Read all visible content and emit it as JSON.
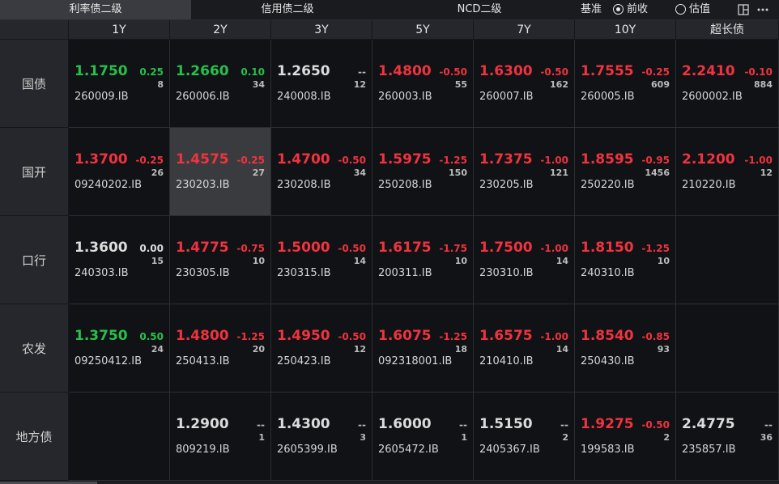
{
  "tabs": [
    "利率债二级",
    "信用债二级",
    "NCD二级"
  ],
  "basis": {
    "label": "基准",
    "options": [
      "前收",
      "估值"
    ],
    "selected": "前收"
  },
  "icons": {
    "layout": "layout-icon",
    "more": "more-icon"
  },
  "colors": {
    "up": "#f0333e",
    "down": "#27c04a",
    "flat": "#dcdcdc"
  },
  "columns": [
    "1Y",
    "2Y",
    "3Y",
    "5Y",
    "7Y",
    "10Y",
    "超长债"
  ],
  "rows": [
    {
      "label": "国债",
      "cells": [
        {
          "yield": "1.1750",
          "change": "0.25",
          "volume": "8",
          "code": "260009.IB",
          "trend": "down"
        },
        {
          "yield": "1.2660",
          "change": "0.10",
          "volume": "34",
          "code": "260006.IB",
          "trend": "down"
        },
        {
          "yield": "1.2650",
          "change": "--",
          "volume": "12",
          "code": "240008.IB",
          "trend": "flat"
        },
        {
          "yield": "1.4800",
          "change": "-0.50",
          "volume": "55",
          "code": "260003.IB",
          "trend": "up"
        },
        {
          "yield": "1.6300",
          "change": "-0.50",
          "volume": "162",
          "code": "260007.IB",
          "trend": "up"
        },
        {
          "yield": "1.7555",
          "change": "-0.25",
          "volume": "609",
          "code": "260005.IB",
          "trend": "up"
        },
        {
          "yield": "2.2410",
          "change": "-0.10",
          "volume": "884",
          "code": "2600002.IB",
          "trend": "up"
        }
      ]
    },
    {
      "label": "国开",
      "cells": [
        {
          "yield": "1.3700",
          "change": "-0.25",
          "volume": "26",
          "code": "09240202.IB",
          "trend": "up"
        },
        {
          "yield": "1.4575",
          "change": "-0.25",
          "volume": "27",
          "code": "230203.IB",
          "trend": "up",
          "highlight": true
        },
        {
          "yield": "1.4700",
          "change": "-0.50",
          "volume": "34",
          "code": "230208.IB",
          "trend": "up"
        },
        {
          "yield": "1.5975",
          "change": "-1.25",
          "volume": "150",
          "code": "250208.IB",
          "trend": "up"
        },
        {
          "yield": "1.7375",
          "change": "-1.00",
          "volume": "121",
          "code": "230205.IB",
          "trend": "up"
        },
        {
          "yield": "1.8595",
          "change": "-0.95",
          "volume": "1456",
          "code": "250220.IB",
          "trend": "up"
        },
        {
          "yield": "2.1200",
          "change": "-1.00",
          "volume": "12",
          "code": "210220.IB",
          "trend": "up"
        }
      ]
    },
    {
      "label": "口行",
      "cells": [
        {
          "yield": "1.3600",
          "change": "0.00",
          "volume": "15",
          "code": "240303.IB",
          "trend": "flat"
        },
        {
          "yield": "1.4775",
          "change": "-0.75",
          "volume": "10",
          "code": "230305.IB",
          "trend": "up"
        },
        {
          "yield": "1.5000",
          "change": "-0.50",
          "volume": "14",
          "code": "230315.IB",
          "trend": "up"
        },
        {
          "yield": "1.6175",
          "change": "-1.75",
          "volume": "10",
          "code": "200311.IB",
          "trend": "up"
        },
        {
          "yield": "1.7500",
          "change": "-1.00",
          "volume": "14",
          "code": "230310.IB",
          "trend": "up"
        },
        {
          "yield": "1.8150",
          "change": "-1.25",
          "volume": "10",
          "code": "240310.IB",
          "trend": "up"
        },
        null
      ]
    },
    {
      "label": "农发",
      "cells": [
        {
          "yield": "1.3750",
          "change": "0.50",
          "volume": "24",
          "code": "09250412.IB",
          "trend": "down"
        },
        {
          "yield": "1.4800",
          "change": "-1.25",
          "volume": "20",
          "code": "250413.IB",
          "trend": "up"
        },
        {
          "yield": "1.4950",
          "change": "-0.50",
          "volume": "12",
          "code": "250423.IB",
          "trend": "up"
        },
        {
          "yield": "1.6075",
          "change": "-1.25",
          "volume": "18",
          "code": "092318001.IB",
          "trend": "up"
        },
        {
          "yield": "1.6575",
          "change": "-1.00",
          "volume": "14",
          "code": "210410.IB",
          "trend": "up"
        },
        {
          "yield": "1.8540",
          "change": "-0.85",
          "volume": "93",
          "code": "250430.IB",
          "trend": "up"
        },
        null
      ]
    },
    {
      "label": "地方债",
      "cells": [
        null,
        {
          "yield": "1.2900",
          "change": "--",
          "volume": "1",
          "code": "809219.IB",
          "trend": "flat"
        },
        {
          "yield": "1.4300",
          "change": "--",
          "volume": "3",
          "code": "2605399.IB",
          "trend": "flat"
        },
        {
          "yield": "1.6000",
          "change": "--",
          "volume": "1",
          "code": "2605472.IB",
          "trend": "flat"
        },
        {
          "yield": "1.5150",
          "change": "--",
          "volume": "2",
          "code": "2405367.IB",
          "trend": "flat"
        },
        {
          "yield": "1.9275",
          "change": "-0.50",
          "volume": "2",
          "code": "199583.IB",
          "trend": "up"
        },
        {
          "yield": "2.4775",
          "change": "--",
          "volume": "36",
          "code": "235857.IB",
          "trend": "flat"
        }
      ]
    }
  ]
}
